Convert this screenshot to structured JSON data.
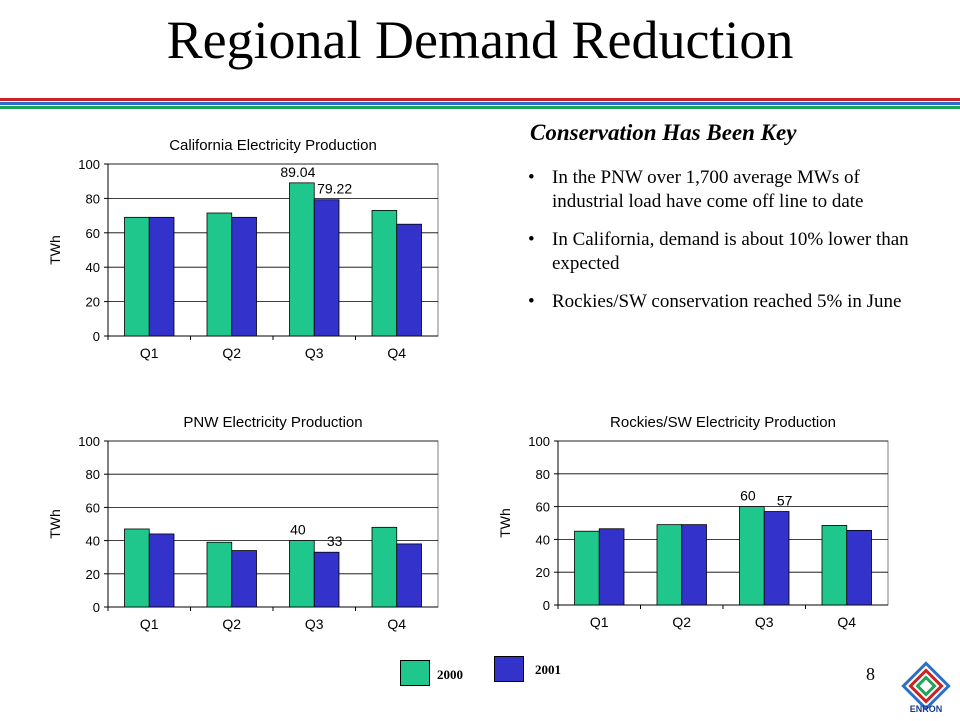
{
  "slide": {
    "title": "Regional Demand Reduction",
    "page_number": "8"
  },
  "text_panel": {
    "heading": "Conservation Has Been Key",
    "bullets": [
      "In the PNW over 1,700 average MWs of industrial load have come off line to date",
      "In California, demand is about 10% lower than expected",
      "Rockies/SW conservation reached 5% in June"
    ]
  },
  "legend": {
    "items": [
      {
        "label": "2000",
        "color": "#1fc78c"
      },
      {
        "label": "2001",
        "color": "#3333cc"
      }
    ]
  },
  "colors": {
    "series_2000": "#1fc78c",
    "series_2001": "#3333cc",
    "rule_colors": [
      "#cc2222",
      "#2a6fcc",
      "#22a25a"
    ]
  },
  "logo": {
    "name": "enron-logo",
    "text": "ENRON"
  },
  "chart_data": [
    {
      "type": "bar",
      "title": "California Electricity Production",
      "ylabel": "TWh",
      "xlabel": "",
      "categories": [
        "Q1",
        "Q2",
        "Q3",
        "Q4"
      ],
      "ylim": [
        0,
        100
      ],
      "yticks": [
        0,
        20,
        40,
        60,
        80,
        100
      ],
      "grid": true,
      "series": [
        {
          "values": [
            69,
            71.5,
            89.04,
            73
          ]
        },
        {
          "values": [
            69,
            69,
            79.22,
            65
          ]
        }
      ],
      "data_labels": [
        {
          "series": 0,
          "index": 2,
          "text": "89.04"
        },
        {
          "series": 1,
          "index": 2,
          "text": "79.22"
        }
      ]
    },
    {
      "type": "bar",
      "title": "PNW Electricity Production",
      "ylabel": "TWh",
      "xlabel": "",
      "categories": [
        "Q1",
        "Q2",
        "Q3",
        "Q4"
      ],
      "ylim": [
        0,
        100
      ],
      "yticks": [
        0,
        20,
        40,
        60,
        80,
        100
      ],
      "grid": true,
      "series": [
        {
          "values": [
            47,
            39,
            40,
            48
          ]
        },
        {
          "values": [
            44,
            34,
            33,
            38
          ]
        }
      ],
      "data_labels": [
        {
          "series": 0,
          "index": 2,
          "text": "40"
        },
        {
          "series": 1,
          "index": 2,
          "text": "33"
        }
      ]
    },
    {
      "type": "bar",
      "title": "Rockies/SW Electricity Production",
      "ylabel": "TWh",
      "xlabel": "",
      "categories": [
        "Q1",
        "Q2",
        "Q3",
        "Q4"
      ],
      "ylim": [
        0,
        100
      ],
      "yticks": [
        0,
        20,
        40,
        60,
        80,
        100
      ],
      "grid": true,
      "series": [
        {
          "values": [
            45,
            49,
            60,
            48.5
          ]
        },
        {
          "values": [
            46.5,
            49,
            57,
            45.5
          ]
        }
      ],
      "data_labels": [
        {
          "series": 0,
          "index": 2,
          "text": "60"
        },
        {
          "series": 1,
          "index": 2,
          "text": "57"
        }
      ]
    }
  ]
}
